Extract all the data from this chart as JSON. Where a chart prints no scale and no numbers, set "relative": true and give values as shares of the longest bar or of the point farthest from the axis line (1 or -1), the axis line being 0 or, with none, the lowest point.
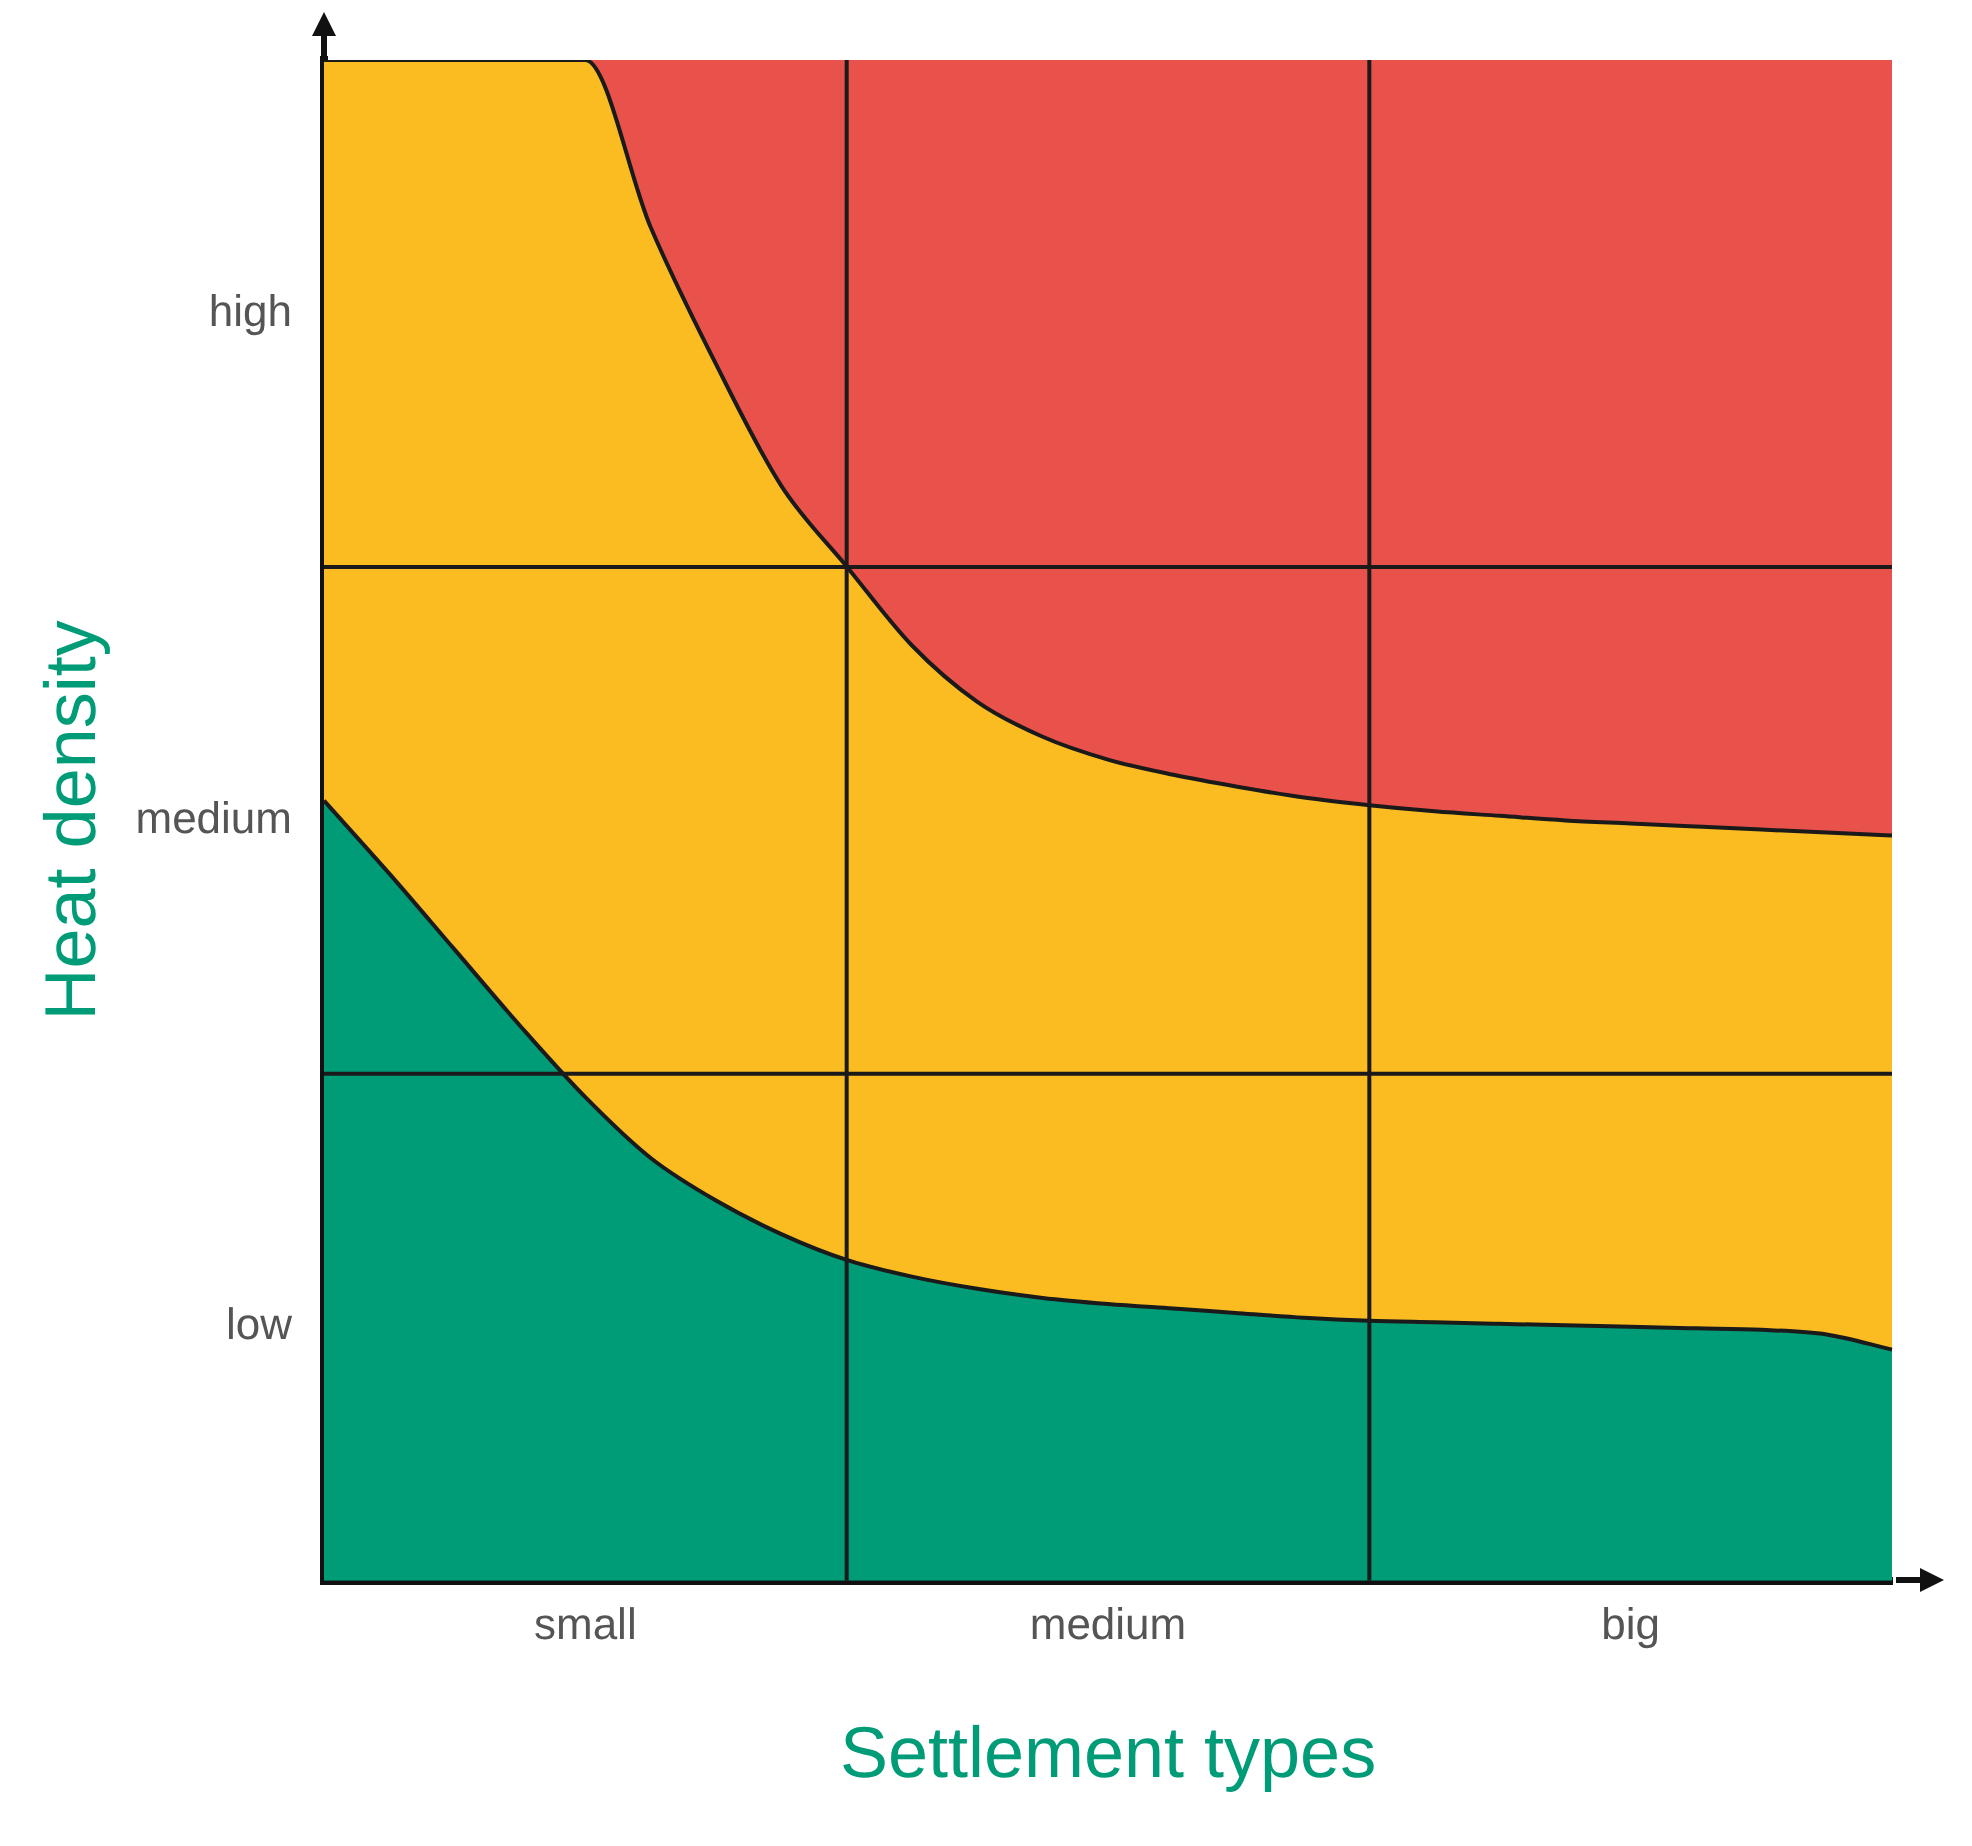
{
  "chart_data": {
    "type": "area",
    "xlabel": "Settlement types",
    "ylabel": "Heat density",
    "stacked": true,
    "relative": true,
    "grid": true,
    "categories": [
      null,
      null,
      null,
      null,
      "small",
      null,
      null,
      null,
      null,
      null,
      null,
      null,
      "medium",
      null,
      null,
      null,
      null,
      null,
      null,
      null,
      "big",
      null,
      null,
      null,
      null
    ],
    "annotations": [
      "low",
      "medium",
      "high"
    ],
    "series": [
      {
        "color": "#009b77",
        "values": [
          0.513,
          0.465,
          0.415,
          0.365,
          0.318,
          0.278,
          0.25,
          0.228,
          0.211,
          0.2,
          0.192,
          0.186,
          0.182,
          0.179,
          0.176,
          0.173,
          0.171,
          0.17,
          0.169,
          0.168,
          0.167,
          0.166,
          0.165,
          0.162,
          0.152
        ]
      },
      {
        "color": "#fbbc21",
        "values": [
          0.487,
          0.535,
          0.585,
          0.635,
          0.682,
          0.612,
          0.55,
          0.492,
          0.456,
          0.415,
          0.386,
          0.369,
          0.358,
          0.351,
          0.346,
          0.342,
          0.339,
          0.336,
          0.334,
          0.332,
          0.331,
          0.33,
          0.329,
          0.33,
          0.338
        ]
      },
      {
        "color": "#e9524a",
        "values": [
          0,
          0,
          0,
          0,
          0,
          0.11,
          0.2,
          0.28,
          0.333,
          0.385,
          0.422,
          0.445,
          0.46,
          0.47,
          0.478,
          0.485,
          0.49,
          0.494,
          0.497,
          0.5,
          0.502,
          0.504,
          0.506,
          0.508,
          0.51
        ]
      }
    ]
  }
}
